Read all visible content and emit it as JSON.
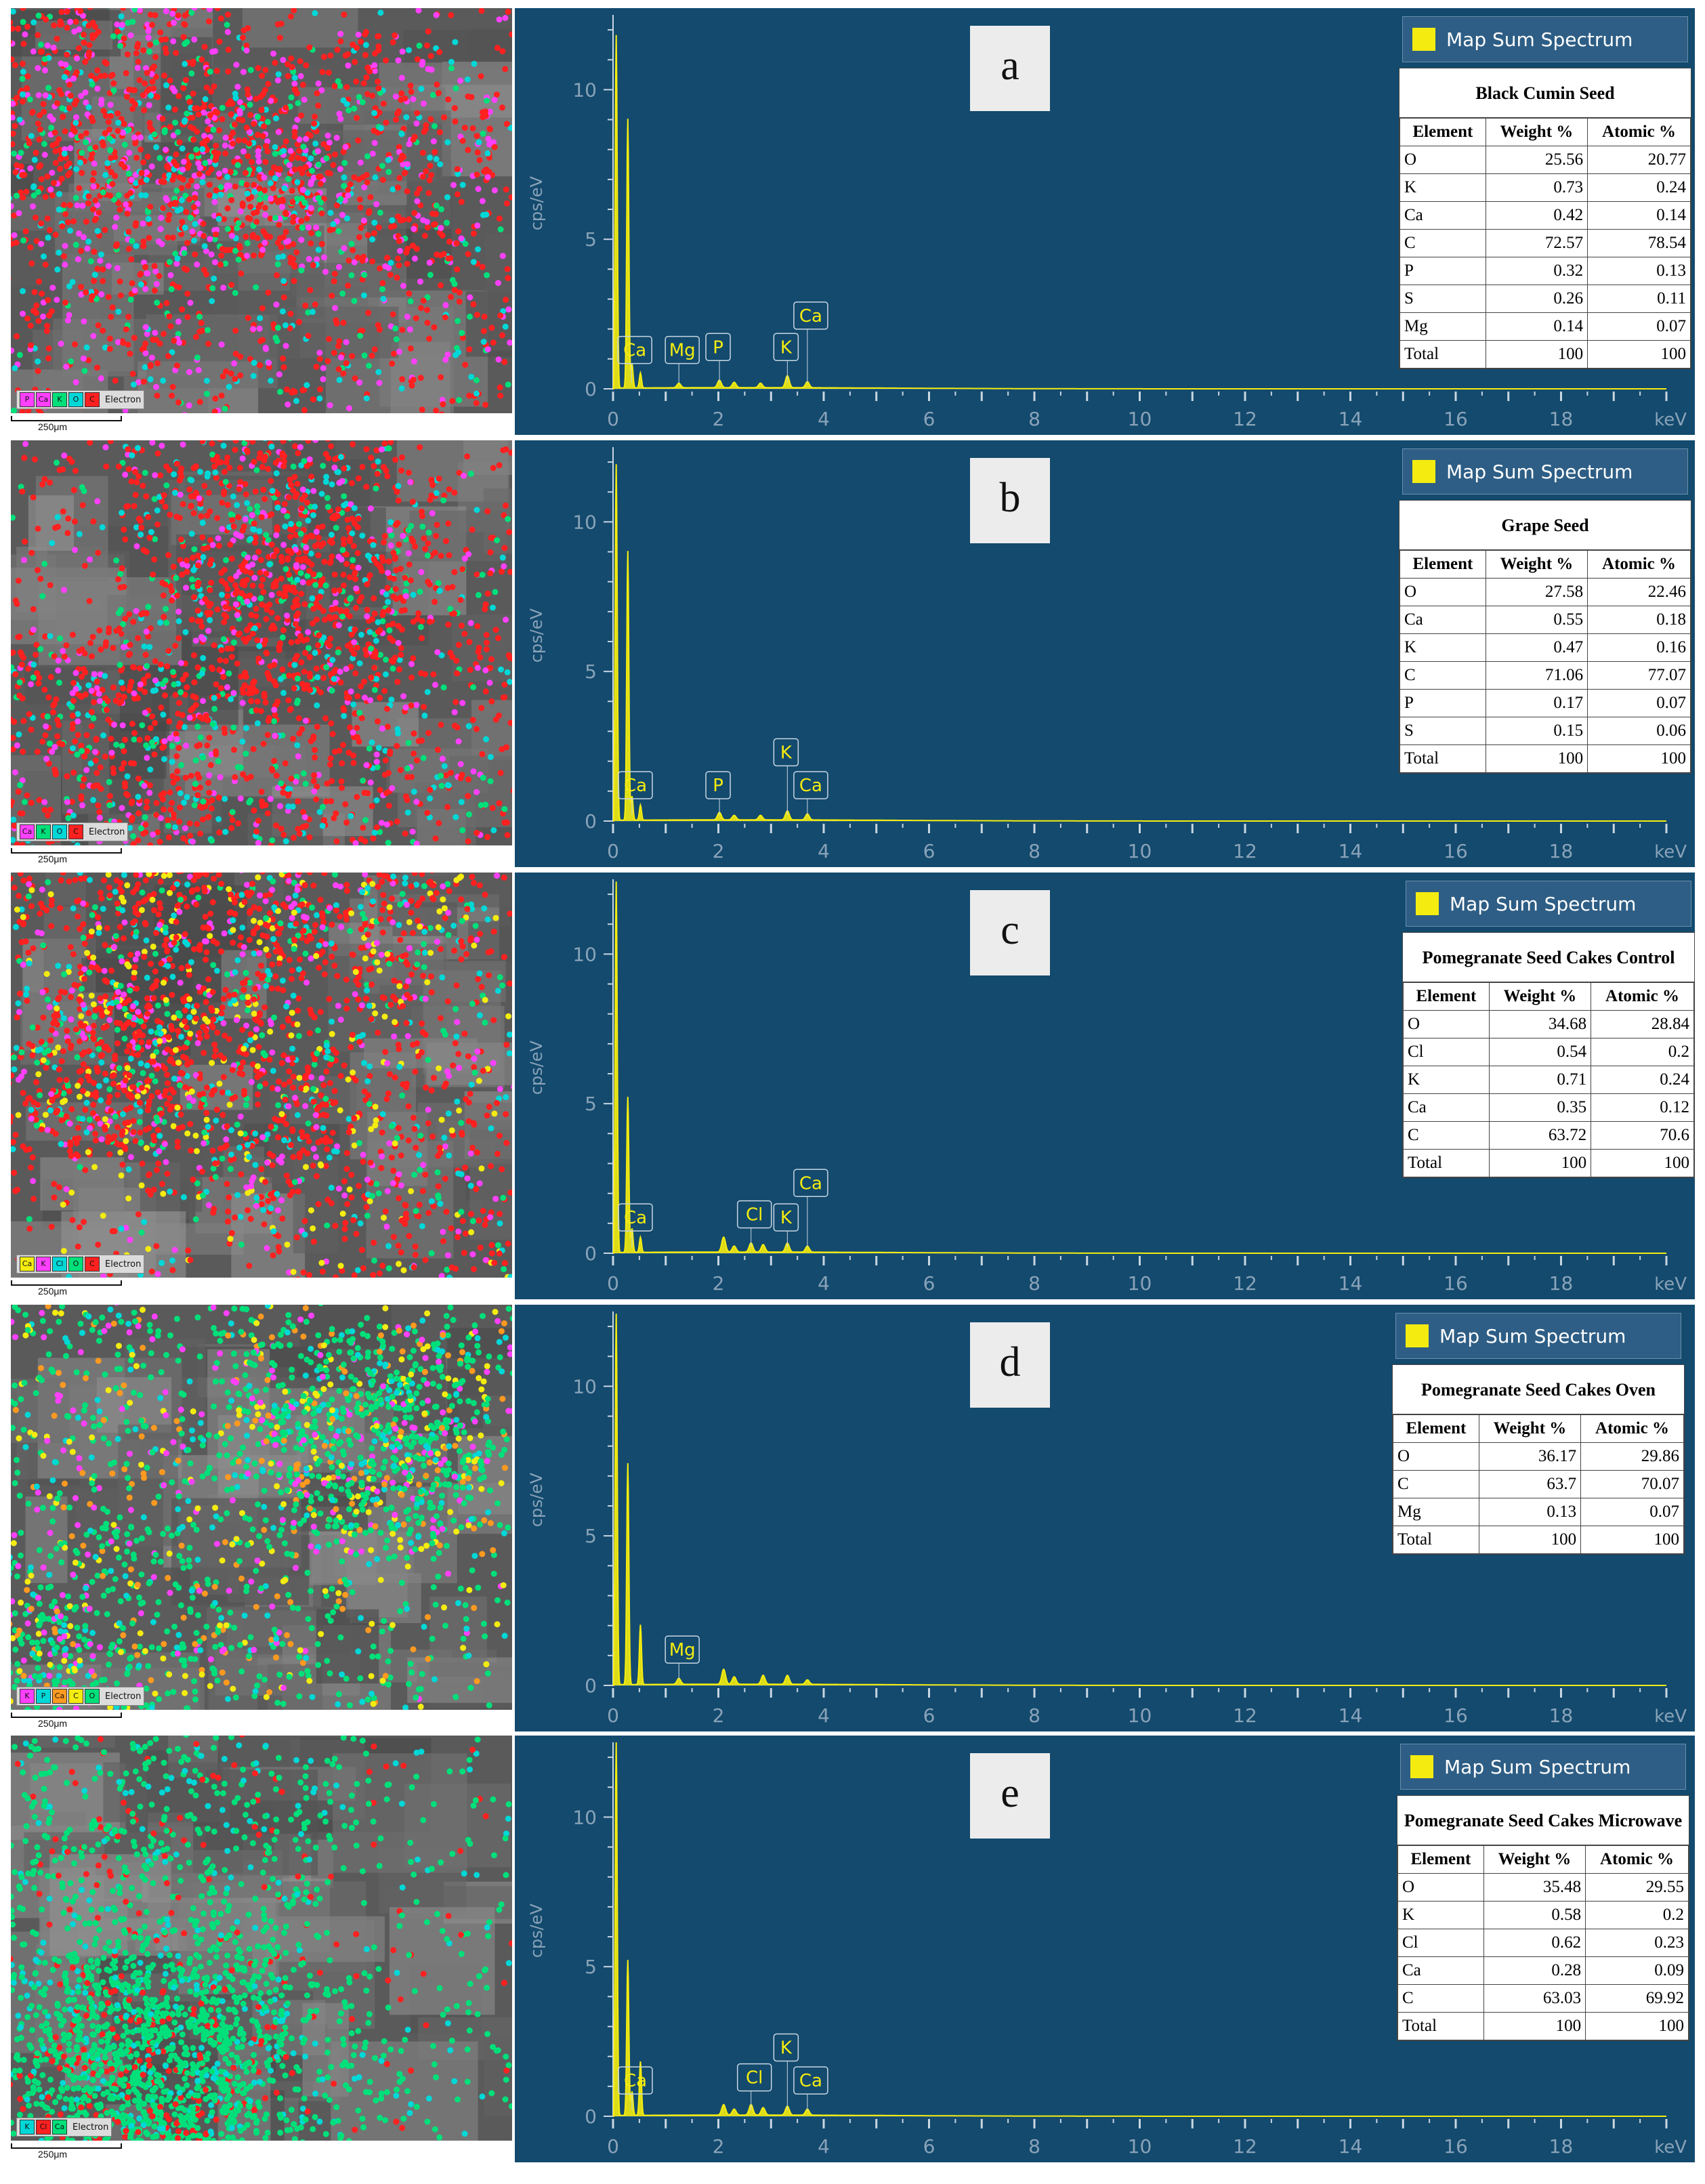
{
  "chart_data": [
    {
      "type": "table",
      "panel": "a",
      "table_title": "Black Cumin Seed",
      "columns": [
        "Element",
        "Weight %",
        "Atomic %"
      ],
      "rows": [
        [
          "O",
          "25.56",
          "20.77"
        ],
        [
          "K",
          "0.73",
          "0.24"
        ],
        [
          "Ca",
          "0.42",
          "0.14"
        ],
        [
          "C",
          "72.57",
          "78.54"
        ],
        [
          "P",
          "0.32",
          "0.13"
        ],
        [
          "S",
          "0.26",
          "0.11"
        ],
        [
          "Mg",
          "0.14",
          "0.07"
        ],
        [
          "Total",
          "100",
          "100"
        ]
      ],
      "map_legend": [
        "P",
        "Ca",
        "K",
        "O",
        "C"
      ],
      "map_legend_colors": [
        "#ff40ff",
        "#ff40ff",
        "#00e07a",
        "#00d8d8",
        "#ff2020"
      ],
      "peak_labels": [
        "Ca",
        "Mg",
        "P",
        "K",
        "Ca"
      ],
      "spectrum_peaks": [
        [
          0.06,
          11.8
        ],
        [
          0.28,
          9.0
        ],
        [
          0.36,
          0.8
        ],
        [
          0.52,
          0.5
        ],
        [
          1.25,
          0.15
        ],
        [
          2.02,
          0.25
        ],
        [
          2.3,
          0.18
        ],
        [
          2.8,
          0.15
        ],
        [
          3.31,
          0.4
        ],
        [
          3.69,
          0.2
        ]
      ]
    },
    {
      "type": "table",
      "panel": "b",
      "table_title": "Grape Seed",
      "columns": [
        "Element",
        "Weight %",
        "Atomic %"
      ],
      "rows": [
        [
          "O",
          "27.58",
          "22.46"
        ],
        [
          "Ca",
          "0.55",
          "0.18"
        ],
        [
          "K",
          "0.47",
          "0.16"
        ],
        [
          "C",
          "71.06",
          "77.07"
        ],
        [
          "P",
          "0.17",
          "0.07"
        ],
        [
          "S",
          "0.15",
          "0.06"
        ],
        [
          "Total",
          "100",
          "100"
        ]
      ],
      "map_legend": [
        "Ca",
        "K",
        "O",
        "C"
      ],
      "map_legend_colors": [
        "#ff40ff",
        "#00e07a",
        "#00d8d8",
        "#ff2020"
      ],
      "peak_labels": [
        "Ca",
        "P",
        "K",
        "Ca"
      ],
      "spectrum_peaks": [
        [
          0.06,
          11.9
        ],
        [
          0.28,
          9.0
        ],
        [
          0.36,
          0.8
        ],
        [
          0.52,
          0.5
        ],
        [
          2.02,
          0.25
        ],
        [
          2.3,
          0.15
        ],
        [
          2.8,
          0.15
        ],
        [
          3.31,
          0.3
        ],
        [
          3.69,
          0.2
        ]
      ]
    },
    {
      "type": "table",
      "panel": "c",
      "table_title": "Pomegranate Seed Cakes Control",
      "columns": [
        "Element",
        "Weight %",
        "Atomic %"
      ],
      "rows": [
        [
          "O",
          "34.68",
          "28.84"
        ],
        [
          "Cl",
          "0.54",
          "0.2"
        ],
        [
          "K",
          "0.71",
          "0.24"
        ],
        [
          "Ca",
          "0.35",
          "0.12"
        ],
        [
          "C",
          "63.72",
          "70.6"
        ],
        [
          "Total",
          "100",
          "100"
        ]
      ],
      "map_legend": [
        "Ca",
        "K",
        "Cl",
        "O",
        "C"
      ],
      "map_legend_colors": [
        "#f4ec10",
        "#ff40ff",
        "#00d8d8",
        "#00e07a",
        "#ff2020"
      ],
      "peak_labels": [
        "Ca",
        "Cl",
        "K",
        "Ca"
      ],
      "spectrum_peaks": [
        [
          0.06,
          12.4
        ],
        [
          0.28,
          5.2
        ],
        [
          0.36,
          0.8
        ],
        [
          0.52,
          0.5
        ],
        [
          2.1,
          0.5
        ],
        [
          2.3,
          0.2
        ],
        [
          2.62,
          0.3
        ],
        [
          2.85,
          0.25
        ],
        [
          3.31,
          0.3
        ],
        [
          3.69,
          0.2
        ]
      ]
    },
    {
      "type": "table",
      "panel": "d",
      "table_title": "Pomegranate Seed Cakes Oven",
      "columns": [
        "Element",
        "Weight %",
        "Atomic %"
      ],
      "rows": [
        [
          "O",
          "36.17",
          "29.86"
        ],
        [
          "C",
          "63.7",
          "70.07"
        ],
        [
          "Mg",
          "0.13",
          "0.07"
        ],
        [
          "Total",
          "100",
          "100"
        ]
      ],
      "map_legend": [
        "K",
        "P",
        "Ca",
        "C",
        "O"
      ],
      "map_legend_colors": [
        "#ff40ff",
        "#00d8d8",
        "#ff9a20",
        "#f4ec10",
        "#00e07a"
      ],
      "peak_labels": [
        "Mg"
      ],
      "spectrum_peaks": [
        [
          0.06,
          12.4
        ],
        [
          0.28,
          7.4
        ],
        [
          0.52,
          2.0
        ],
        [
          1.25,
          0.2
        ],
        [
          2.1,
          0.5
        ],
        [
          2.3,
          0.25
        ],
        [
          2.85,
          0.3
        ],
        [
          3.31,
          0.3
        ],
        [
          3.69,
          0.15
        ]
      ]
    },
    {
      "type": "table",
      "panel": "e",
      "table_title": "Pomegranate Seed Cakes Microwave",
      "columns": [
        "Element",
        "Weight %",
        "Atomic %"
      ],
      "rows": [
        [
          "O",
          "35.48",
          "29.55"
        ],
        [
          "K",
          "0.58",
          "0.2"
        ],
        [
          "Cl",
          "0.62",
          "0.23"
        ],
        [
          "Ca",
          "0.28",
          "0.09"
        ],
        [
          "C",
          "63.03",
          "69.92"
        ],
        [
          "Total",
          "100",
          "100"
        ]
      ],
      "map_legend": [
        "K",
        "Cl",
        "Ca"
      ],
      "map_legend_colors": [
        "#00d8d8",
        "#ff2020",
        "#00e07a"
      ],
      "peak_labels": [
        "Ca",
        "Cl",
        "K",
        "Ca"
      ],
      "spectrum_peaks": [
        [
          0.06,
          12.6
        ],
        [
          0.28,
          5.2
        ],
        [
          0.36,
          0.8
        ],
        [
          0.52,
          1.8
        ],
        [
          2.1,
          0.35
        ],
        [
          2.3,
          0.2
        ],
        [
          2.62,
          0.35
        ],
        [
          2.85,
          0.25
        ],
        [
          3.31,
          0.3
        ],
        [
          3.69,
          0.2
        ]
      ]
    }
  ],
  "common": {
    "map_electron_label": "Electron",
    "scale_bar": "250μm",
    "spectrum_legend": "Map Sum Spectrum",
    "y_axis_label": "cps/eV",
    "x_axis_unit": "keV",
    "x_ticks": [
      "0",
      "2",
      "4",
      "6",
      "8",
      "10",
      "12",
      "14",
      "16",
      "18"
    ],
    "y_ticks": [
      "0",
      "5",
      "10"
    ],
    "xlim": [
      0,
      20
    ],
    "ylim": [
      0,
      12.5
    ],
    "colors": {
      "spectrum_bg": "#134a6e",
      "spectrum_line": "#f4ec10",
      "axis_text": "#8aa3b8"
    }
  }
}
